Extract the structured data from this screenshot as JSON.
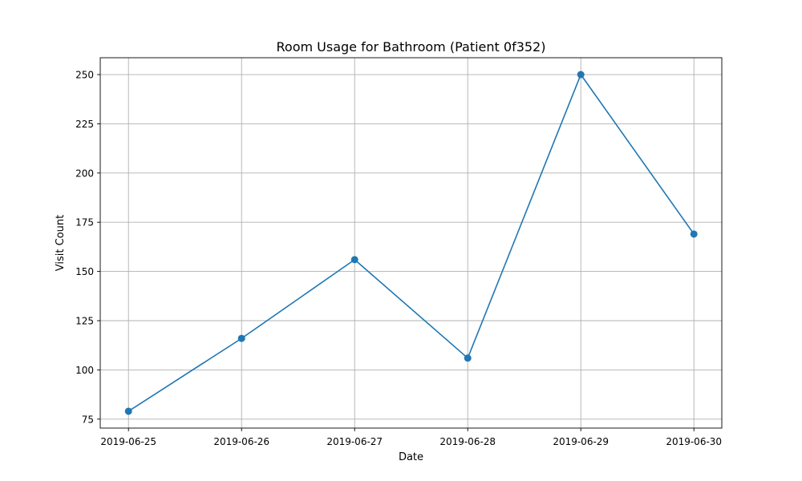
{
  "chart_data": {
    "type": "line",
    "title": "Room Usage for Bathroom (Patient 0f352)",
    "xlabel": "Date",
    "ylabel": "Visit Count",
    "categories": [
      "2019-06-25",
      "2019-06-26",
      "2019-06-27",
      "2019-06-28",
      "2019-06-29",
      "2019-06-30"
    ],
    "series": [
      {
        "values": [
          79,
          116,
          156,
          106,
          250,
          169
        ]
      }
    ],
    "ylim": [
      70.44,
      258.56
    ],
    "yticks": [
      75,
      100,
      125,
      150,
      175,
      200,
      225,
      250
    ],
    "grid": true,
    "marker": "circle",
    "color": "#1f77b4"
  }
}
